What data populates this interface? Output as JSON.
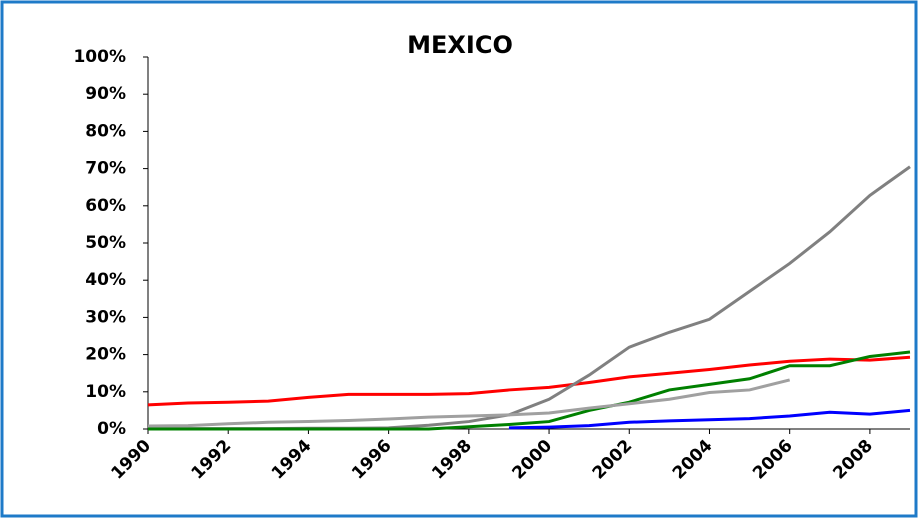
{
  "chart_data": {
    "type": "line",
    "title": "MEXICO",
    "x": [
      1990,
      1991,
      1992,
      1993,
      1994,
      1995,
      1996,
      1997,
      1998,
      1999,
      2000,
      2001,
      2002,
      2003,
      2004,
      2005,
      2006,
      2007,
      2008,
      2009
    ],
    "xlim": [
      1990,
      2009
    ],
    "xticks": [
      1990,
      1992,
      1994,
      1996,
      1998,
      2000,
      2002,
      2004,
      2006,
      2008
    ],
    "ylim": [
      0,
      100
    ],
    "yticks": [
      {
        "value": 0,
        "label": "0%"
      },
      {
        "value": 10,
        "label": "10%"
      },
      {
        "value": 20,
        "label": "20%"
      },
      {
        "value": 30,
        "label": "30%"
      },
      {
        "value": 40,
        "label": "40%"
      },
      {
        "value": 50,
        "label": "50%"
      },
      {
        "value": 60,
        "label": "60%"
      },
      {
        "value": 70,
        "label": "70%"
      },
      {
        "value": 80,
        "label": "80%"
      },
      {
        "value": 90,
        "label": "90%"
      },
      {
        "value": 100,
        "label": "100%"
      }
    ],
    "series": [
      {
        "color": "#ff0000",
        "values": [
          6.5,
          7,
          7.2,
          7.5,
          8.5,
          9.3,
          9.3,
          9.3,
          9.5,
          10.5,
          11.2,
          12.5,
          14,
          15,
          16,
          17.2,
          18.2,
          18.8,
          18.5,
          19.3
        ]
      },
      {
        "color": "#808080",
        "values": [
          0.1,
          0.1,
          0.1,
          0.1,
          0.2,
          0.2,
          0.3,
          1.0,
          2,
          3.8,
          8,
          14.5,
          22,
          26,
          29.5,
          37,
          44.5,
          53,
          62.8,
          70.5
        ]
      },
      {
        "color": "#008000",
        "values": [
          0,
          0,
          0,
          0,
          0,
          0,
          0,
          0,
          0.6,
          1.2,
          2,
          5,
          7.2,
          10.5,
          12,
          13.5,
          17,
          17,
          19.5,
          20.7
        ]
      },
      {
        "color": "#a0a0a0",
        "values": [
          0.8,
          0.9,
          1.4,
          1.8,
          2,
          2.3,
          2.7,
          3.2,
          3.5,
          3.8,
          4.3,
          5.6,
          6.8,
          8,
          9.8,
          10.5,
          13.2,
          null,
          null,
          null
        ]
      },
      {
        "color": "#0000ff",
        "values": [
          null,
          null,
          null,
          null,
          null,
          null,
          null,
          null,
          null,
          0.3,
          0.5,
          0.9,
          1.8,
          2.2,
          2.5,
          2.8,
          3.5,
          4.5,
          4,
          5
        ]
      }
    ]
  }
}
